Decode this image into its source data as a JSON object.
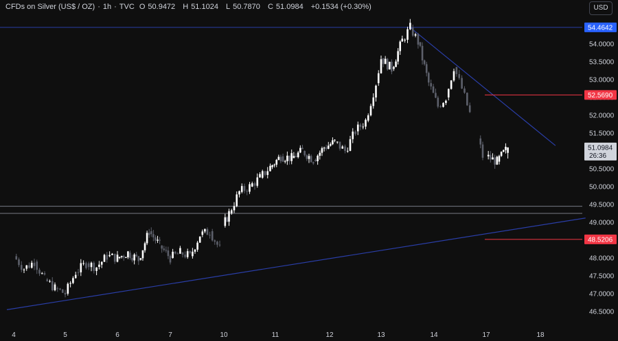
{
  "header": {
    "symbol": "CFDs on Silver (US$ / OZ)",
    "interval": "1h",
    "source": "TVC",
    "o_label": "O",
    "o_value": "50.9472",
    "h_label": "H",
    "h_value": "51.1024",
    "l_label": "L",
    "l_value": "50.7870",
    "c_label": "C",
    "c_value": "51.0984",
    "change": "+0.1534 (+0.30%)",
    "currency_button": "USD"
  },
  "colors": {
    "background": "#0f0f0f",
    "candle_up": "#ffffff",
    "candle_down": "#5d606b",
    "trendline": "#2a3ea8",
    "support_zone": "#787b86",
    "red_level": "#f23645",
    "blue_badge": "#2962ff"
  },
  "chart_data": {
    "type": "candlestick",
    "instrument": "CFDs on Silver (US$ / OZ)",
    "timeframe": "1h",
    "x_tick_labels": [
      "4",
      "5",
      "6",
      "7",
      "10",
      "11",
      "12",
      "13",
      "14",
      "17",
      "18"
    ],
    "y_tick_labels": [
      "54.0000",
      "53.5000",
      "53.0000",
      "52.5000",
      "52.0000",
      "51.5000",
      "51.0000",
      "50.5000",
      "50.0000",
      "49.5000",
      "49.0000",
      "48.5000",
      "48.0000",
      "47.5000",
      "47.0000",
      "46.5000"
    ],
    "ylim": [
      46.4,
      54.8
    ],
    "price_path": [
      [
        3.6,
        48.2
      ],
      [
        3.8,
        47.95
      ],
      [
        4.0,
        48.05
      ],
      [
        4.2,
        47.7
      ],
      [
        4.4,
        47.9
      ],
      [
        4.6,
        47.4
      ],
      [
        4.8,
        47.15
      ],
      [
        5.0,
        47.0
      ],
      [
        5.2,
        47.6
      ],
      [
        5.4,
        47.85
      ],
      [
        5.6,
        47.75
      ],
      [
        5.8,
        48.05
      ],
      [
        6.0,
        48.0
      ],
      [
        6.2,
        48.15
      ],
      [
        6.4,
        47.95
      ],
      [
        6.6,
        48.75
      ],
      [
        6.8,
        48.35
      ],
      [
        7.0,
        48.0
      ],
      [
        7.2,
        48.15
      ],
      [
        7.4,
        48.05
      ],
      [
        7.6,
        48.65
      ],
      [
        7.8,
        48.75
      ],
      [
        8.0,
        48.25
      ],
      [
        9.8,
        48.3
      ],
      [
        9.95,
        48.9
      ],
      [
        10.1,
        49.25
      ],
      [
        10.3,
        49.85
      ],
      [
        10.5,
        50.0
      ],
      [
        10.7,
        50.25
      ],
      [
        10.9,
        50.55
      ],
      [
        11.1,
        50.85
      ],
      [
        11.3,
        50.8
      ],
      [
        11.5,
        51.0
      ],
      [
        11.7,
        50.75
      ],
      [
        11.9,
        51.1
      ],
      [
        12.1,
        51.25
      ],
      [
        12.3,
        51.0
      ],
      [
        12.5,
        51.55
      ],
      [
        12.7,
        51.85
      ],
      [
        12.9,
        52.9
      ],
      [
        13.0,
        53.6
      ],
      [
        13.2,
        53.3
      ],
      [
        13.4,
        54.1
      ],
      [
        13.55,
        54.46
      ],
      [
        13.7,
        54.05
      ],
      [
        13.9,
        52.9
      ],
      [
        14.1,
        52.25
      ],
      [
        14.3,
        52.5
      ],
      [
        14.5,
        53.35
      ],
      [
        14.7,
        52.75
      ],
      [
        14.9,
        52.05
      ],
      [
        15.0,
        51.0
      ],
      [
        15.1,
        50.55
      ],
      [
        15.2,
        51.35
      ],
      [
        15.4,
        50.85
      ],
      [
        16.8,
        50.5
      ],
      [
        17.0,
        50.85
      ],
      [
        17.2,
        50.7
      ],
      [
        17.4,
        51.1
      ]
    ],
    "series": [
      {
        "name": "",
        "kind": "horizontal_level",
        "value": 54.4642,
        "label": "54.4642",
        "badge": "blue"
      },
      {
        "name": "",
        "kind": "horizontal_level",
        "value": 52.569,
        "label": "52.5690",
        "badge": "red"
      },
      {
        "name": "",
        "kind": "horizontal_level",
        "value": 48.5206,
        "label": "48.5206",
        "badge": "red"
      },
      {
        "name": "",
        "kind": "support_zone",
        "top": 49.45,
        "bottom": 49.25
      },
      {
        "name": "",
        "kind": "trendline",
        "points": [
          [
            3.5,
            46.55
          ],
          [
            18.9,
            49.12
          ]
        ]
      },
      {
        "name": "",
        "kind": "trendline",
        "points": [
          [
            13.55,
            54.46
          ],
          [
            18.3,
            51.15
          ]
        ]
      }
    ],
    "last_price": {
      "value": 51.0984,
      "label": "51.0984",
      "countdown": "26:36"
    }
  }
}
